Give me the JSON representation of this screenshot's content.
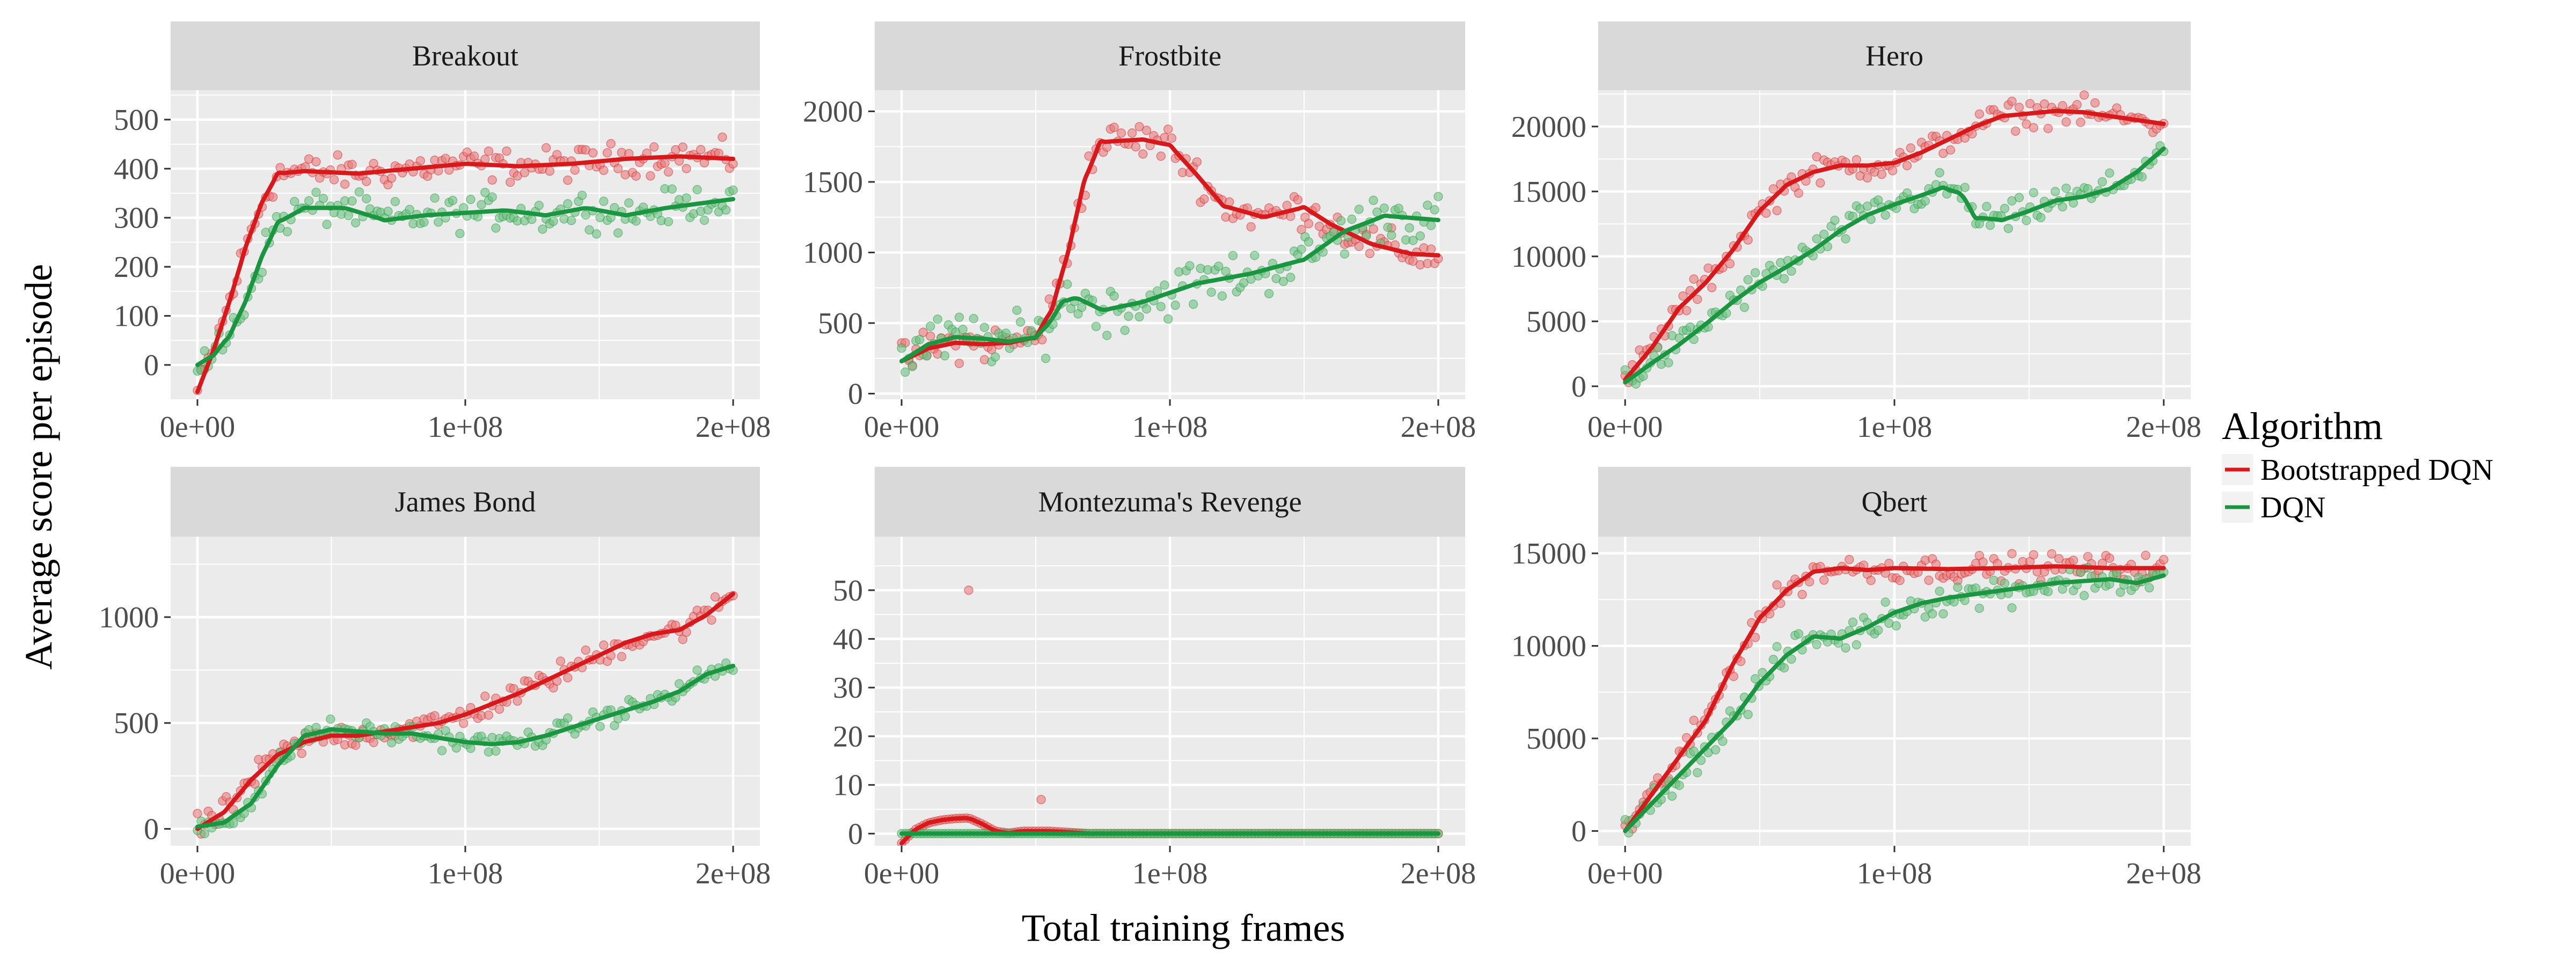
{
  "chart_data": {
    "type": "scatter",
    "xlabel": "Total training frames",
    "ylabel": "Average score per episode",
    "x_ticks": [
      0,
      100000000,
      200000000
    ],
    "x_tick_labels": [
      "0e+00",
      "1e+08",
      "2e+08"
    ],
    "xlim": [
      -10000000,
      210000000
    ],
    "legend": {
      "title": "Algorithm",
      "placement": "right",
      "entries": [
        {
          "name": "Bootstrapped DQN",
          "color": "#d7191c"
        },
        {
          "name": "DQN",
          "color": "#1a9641"
        }
      ]
    },
    "colors": {
      "bootstrapped_line": "#d7191c",
      "bootstrapped_points": "#e8797a",
      "dqn_line": "#1a9641",
      "dqn_points": "#6cc17e",
      "panel_bg": "#ebebeb",
      "strip_bg": "#d9d9d9",
      "grid": "#ffffff"
    },
    "panels": [
      {
        "title": "Breakout",
        "ylim": [
          -70,
          560
        ],
        "y_ticks": [
          0,
          100,
          200,
          300,
          400,
          500
        ],
        "series": [
          {
            "name": "Bootstrapped DQN",
            "noise": 28,
            "smooth_x": [
              0,
              6,
              12,
              18,
              24,
              30,
              40,
              60,
              80,
              100,
              120,
              140,
              160,
              180,
              200
            ],
            "smooth_y": [
              -55,
              30,
              130,
              240,
              330,
              390,
              395,
              390,
              400,
              410,
              405,
              410,
              420,
              425,
              420
            ]
          },
          {
            "name": "DQN",
            "noise": 30,
            "smooth_x": [
              0,
              6,
              12,
              18,
              24,
              30,
              40,
              55,
              70,
              85,
              100,
              115,
              130,
              145,
              160,
              175,
              200
            ],
            "smooth_y": [
              0,
              20,
              60,
              130,
              220,
              290,
              320,
              320,
              295,
              305,
              310,
              315,
              305,
              320,
              305,
              320,
              338
            ]
          }
        ]
      },
      {
        "title": "Frostbite",
        "ylim": [
          -40,
          2150
        ],
        "y_ticks": [
          0,
          500,
          1000,
          1500,
          2000
        ],
        "series": [
          {
            "name": "Bootstrapped DQN",
            "noise": 110,
            "smooth_x": [
              0,
              10,
              20,
              30,
              40,
              50,
              56,
              62,
              68,
              74,
              80,
              90,
              100,
              110,
              120,
              135,
              150,
              160,
              175,
              190,
              200
            ],
            "smooth_y": [
              230,
              320,
              360,
              350,
              360,
              400,
              600,
              1000,
              1500,
              1780,
              1790,
              1800,
              1760,
              1550,
              1330,
              1250,
              1320,
              1200,
              1060,
              990,
              980
            ]
          },
          {
            "name": "DQN",
            "noise": 150,
            "smooth_x": [
              0,
              10,
              20,
              30,
              40,
              50,
              55,
              60,
              65,
              75,
              90,
              110,
              130,
              150,
              165,
              180,
              200
            ],
            "smooth_y": [
              230,
              350,
              400,
              390,
              370,
              400,
              500,
              650,
              680,
              590,
              650,
              780,
              850,
              950,
              1150,
              1260,
              1230
            ]
          }
        ]
      },
      {
        "title": "Hero",
        "ylim": [
          -1000,
          22800
        ],
        "y_ticks": [
          0,
          5000,
          10000,
          15000,
          20000
        ],
        "series": [
          {
            "name": "Bootstrapped DQN",
            "noise": 900,
            "smooth_x": [
              0,
              10,
              20,
              30,
              40,
              50,
              60,
              70,
              80,
              90,
              100,
              110,
              120,
              130,
              140,
              150,
              160,
              170,
              180,
              190,
              200
            ],
            "smooth_y": [
              500,
              3000,
              6000,
              8000,
              10500,
              13500,
              15500,
              16500,
              17000,
              17000,
              17200,
              18000,
              19000,
              20000,
              20800,
              21000,
              21200,
              21100,
              20800,
              20500,
              20200
            ]
          },
          {
            "name": "DQN",
            "noise": 1000,
            "smooth_x": [
              0,
              10,
              20,
              30,
              40,
              50,
              60,
              70,
              80,
              90,
              100,
              110,
              118,
              125,
              130,
              140,
              150,
              160,
              170,
              180,
              190,
              200
            ],
            "smooth_y": [
              300,
              1800,
              3200,
              4800,
              6500,
              8000,
              9200,
              10500,
              12000,
              13200,
              14000,
              14700,
              15300,
              14800,
              13000,
              12800,
              13500,
              14300,
              14600,
              15200,
              16500,
              18300
            ]
          }
        ]
      },
      {
        "title": "James Bond",
        "ylim": [
          -80,
          1380
        ],
        "y_ticks": [
          0,
          500,
          1000
        ],
        "series": [
          {
            "name": "Bootstrapped DQN",
            "noise": 50,
            "smooth_x": [
              0,
              10,
              20,
              30,
              40,
              50,
              60,
              70,
              80,
              90,
              100,
              110,
              120,
              130,
              140,
              150,
              160,
              170,
              180,
              190,
              200
            ],
            "smooth_y": [
              0,
              80,
              230,
              350,
              410,
              440,
              440,
              460,
              480,
              500,
              540,
              590,
              640,
              700,
              760,
              820,
              880,
              920,
              940,
              1010,
              1110
            ]
          },
          {
            "name": "DQN",
            "noise": 40,
            "smooth_x": [
              0,
              10,
              20,
              30,
              40,
              50,
              60,
              70,
              80,
              90,
              100,
              110,
              120,
              130,
              140,
              150,
              160,
              170,
              180,
              190,
              200
            ],
            "smooth_y": [
              10,
              30,
              120,
              300,
              440,
              470,
              460,
              450,
              450,
              430,
              410,
              400,
              410,
              440,
              480,
              520,
              560,
              600,
              650,
              730,
              770
            ]
          }
        ]
      },
      {
        "title": "Montezuma's Revenge",
        "ylim": [
          -2.5,
          61
        ],
        "y_ticks": [
          0,
          10,
          20,
          30,
          40,
          50
        ],
        "series": [
          {
            "name": "Bootstrapped DQN",
            "noise": 0,
            "smooth_x": [
              0,
              5,
              10,
              15,
              20,
              25,
              30,
              35,
              40,
              45,
              55,
              70,
              200
            ],
            "smooth_y": [
              -2,
              0.8,
              2.2,
              2.8,
              3.1,
              3.2,
              2.0,
              0.5,
              0.1,
              0.5,
              0.5,
              0,
              0
            ],
            "outliers": [
              [
                25,
                50
              ],
              [
                52,
                7
              ]
            ]
          },
          {
            "name": "DQN",
            "noise": 0,
            "smooth_x": [
              0,
              200
            ],
            "smooth_y": [
              0,
              0
            ]
          }
        ]
      },
      {
        "title": "Qbert",
        "ylim": [
          -800,
          15900
        ],
        "y_ticks": [
          0,
          5000,
          10000,
          15000
        ],
        "series": [
          {
            "name": "Bootstrapped DQN",
            "noise": 600,
            "smooth_x": [
              0,
              10,
              20,
              30,
              40,
              50,
              60,
              70,
              80,
              90,
              100,
              120,
              140,
              160,
              180,
              200
            ],
            "smooth_y": [
              0,
              2000,
              4000,
              6000,
              9000,
              11500,
              13000,
              14000,
              14200,
              14100,
              14200,
              14150,
              14200,
              14300,
              14200,
              14200
            ]
          },
          {
            "name": "DQN",
            "noise": 700,
            "smooth_x": [
              0,
              10,
              20,
              30,
              40,
              50,
              60,
              70,
              80,
              90,
              100,
              110,
              120,
              130,
              140,
              150,
              160,
              170,
              180,
              190,
              200
            ],
            "smooth_y": [
              0,
              1500,
              3000,
              4500,
              6000,
              8000,
              9500,
              10500,
              10400,
              11000,
              11800,
              12300,
              12600,
              12800,
              13000,
              13200,
              13400,
              13500,
              13600,
              13400,
              13800
            ]
          }
        ]
      }
    ]
  }
}
